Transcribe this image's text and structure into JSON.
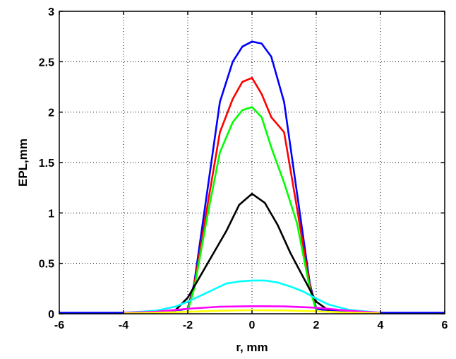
{
  "chart_data": {
    "type": "line",
    "title": "",
    "xlabel": "r, mm",
    "ylabel": "EPL,mm",
    "xlim": [
      -6,
      6
    ],
    "ylim": [
      0,
      3
    ],
    "xticks": [
      -6,
      -4,
      -2,
      0,
      2,
      4,
      6
    ],
    "yticks": [
      0,
      0.5,
      1,
      1.5,
      2,
      2.5,
      3
    ],
    "xtick_labels": [
      "-6",
      "-4",
      "-2",
      "0",
      "2",
      "4",
      "6"
    ],
    "ytick_labels": [
      "0",
      "0.5",
      "1",
      "1.5",
      "2",
      "2.5",
      "3"
    ],
    "grid": true,
    "legend": "none",
    "series": [
      {
        "color": "#0000ff",
        "x": [
          -6,
          -4,
          -3,
          -2.2,
          -2,
          -1.8,
          -1.4,
          -1,
          -0.6,
          -0.3,
          0,
          0.3,
          0.6,
          1,
          1.4,
          1.8,
          2,
          2.2,
          3,
          4,
          6
        ],
        "y": [
          0.01,
          0.01,
          0.02,
          0.04,
          0.05,
          0.3,
          1.2,
          2.1,
          2.5,
          2.65,
          2.7,
          2.68,
          2.55,
          2.1,
          1.2,
          0.3,
          0.05,
          0.04,
          0.02,
          0.01,
          0.01
        ]
      },
      {
        "color": "#ff0000",
        "x": [
          -2,
          -1.8,
          -1.4,
          -1,
          -0.6,
          -0.3,
          0,
          0.3,
          0.6,
          1,
          1.4,
          1.8,
          2
        ],
        "y": [
          0.03,
          0.28,
          1.05,
          1.8,
          2.13,
          2.3,
          2.34,
          2.18,
          1.95,
          1.8,
          1.05,
          0.28,
          0.03
        ]
      },
      {
        "color": "#00ff00",
        "x": [
          -2,
          -1.8,
          -1.4,
          -1,
          -0.6,
          -0.3,
          0,
          0.3,
          0.6,
          1,
          1.4,
          1.8,
          2
        ],
        "y": [
          0.03,
          0.25,
          0.95,
          1.6,
          1.9,
          2.02,
          2.05,
          1.95,
          1.65,
          1.3,
          0.9,
          0.25,
          0.03
        ]
      },
      {
        "color": "#000000",
        "x": [
          -2.4,
          -2,
          -1.6,
          -1.2,
          -0.8,
          -0.4,
          0,
          0.4,
          0.8,
          1.2,
          1.6,
          2,
          2.4
        ],
        "y": [
          0.03,
          0.16,
          0.38,
          0.6,
          0.82,
          1.08,
          1.19,
          1.1,
          0.88,
          0.6,
          0.36,
          0.12,
          0.03
        ]
      },
      {
        "color": "#00ffff",
        "x": [
          -4,
          -3,
          -2.4,
          -2,
          -1.6,
          -1.2,
          -0.8,
          -0.4,
          0,
          0.4,
          0.8,
          1.2,
          1.6,
          2,
          2.4,
          3,
          4
        ],
        "y": [
          0.01,
          0.03,
          0.07,
          0.12,
          0.18,
          0.24,
          0.3,
          0.32,
          0.33,
          0.33,
          0.31,
          0.27,
          0.22,
          0.15,
          0.09,
          0.04,
          0.01
        ]
      },
      {
        "color": "#ff00ff",
        "x": [
          -4,
          -3,
          -2,
          -1,
          0,
          1,
          2,
          3,
          4
        ],
        "y": [
          0.01,
          0.02,
          0.05,
          0.07,
          0.075,
          0.073,
          0.06,
          0.03,
          0.01
        ]
      },
      {
        "color": "#ffff00",
        "x": [
          -4,
          -3,
          -2,
          -1,
          0,
          1,
          2,
          3,
          4
        ],
        "y": [
          0.005,
          0.01,
          0.02,
          0.03,
          0.035,
          0.033,
          0.025,
          0.012,
          0.005
        ]
      }
    ]
  }
}
